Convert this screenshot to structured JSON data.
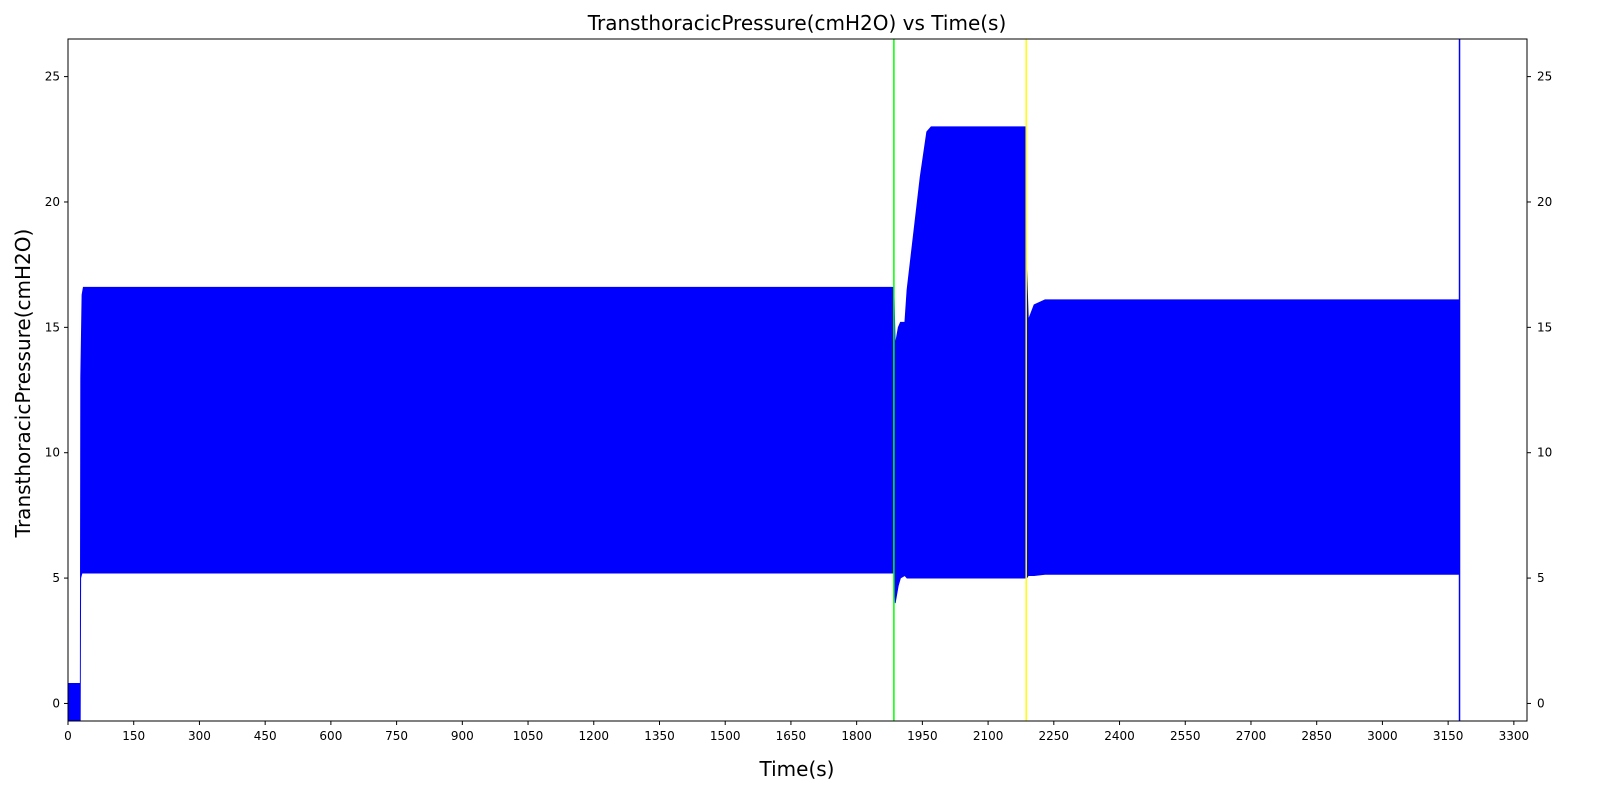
{
  "chart_data": {
    "type": "line",
    "title": "TransthoracicPressure(cmH2O) vs Time(s)",
    "xlabel": "Time(s)",
    "ylabel": "TransthoracicPressure(cmH2O)",
    "xlim": [
      0,
      3330
    ],
    "ylim": [
      -0.7,
      26.5
    ],
    "x_ticks": [
      0,
      150,
      300,
      450,
      600,
      750,
      900,
      1050,
      1200,
      1350,
      1500,
      1650,
      1800,
      1950,
      2100,
      2250,
      2400,
      2550,
      2700,
      2850,
      3000,
      3150,
      3300
    ],
    "y_ticks": [
      0,
      5,
      10,
      15,
      20,
      25
    ],
    "grid": false,
    "right_axis_ticks": true,
    "series": [
      {
        "color": "#0000ff",
        "style": "dense-oscillation-envelope",
        "envelope": [
          {
            "x": 0,
            "low": -0.7,
            "high": 0.8
          },
          {
            "x": 28,
            "low": -0.7,
            "high": 0.8
          },
          {
            "x": 29,
            "low": 5.0,
            "high": 13.0
          },
          {
            "x": 32,
            "low": 5.2,
            "high": 16.3
          },
          {
            "x": 35,
            "low": 5.2,
            "high": 16.6
          },
          {
            "x": 1885,
            "low": 5.2,
            "high": 16.6
          },
          {
            "x": 1888,
            "low": 4.0,
            "high": 14.3
          },
          {
            "x": 1895,
            "low": 4.7,
            "high": 15.0
          },
          {
            "x": 1900,
            "low": 5.0,
            "high": 15.2
          },
          {
            "x": 1910,
            "low": 5.1,
            "high": 15.2
          },
          {
            "x": 1915,
            "low": 5.0,
            "high": 16.5
          },
          {
            "x": 1925,
            "low": 5.0,
            "high": 18.0
          },
          {
            "x": 1945,
            "low": 5.0,
            "high": 21.0
          },
          {
            "x": 1960,
            "low": 5.0,
            "high": 22.8
          },
          {
            "x": 1970,
            "low": 5.0,
            "high": 23.0
          },
          {
            "x": 2185,
            "low": 5.0,
            "high": 23.0
          },
          {
            "x": 2188,
            "low": 5.0,
            "high": 17.3
          },
          {
            "x": 2192,
            "low": 5.1,
            "high": 15.3
          },
          {
            "x": 2205,
            "low": 5.1,
            "high": 15.9
          },
          {
            "x": 2230,
            "low": 5.15,
            "high": 16.1
          },
          {
            "x": 3174,
            "low": 5.15,
            "high": 16.1
          }
        ]
      }
    ],
    "vertical_lines": [
      {
        "x": 1885,
        "color": "#00ff00"
      },
      {
        "x": 2187,
        "color": "#ffff00"
      },
      {
        "x": 3176,
        "color": "#0000ff"
      }
    ]
  }
}
